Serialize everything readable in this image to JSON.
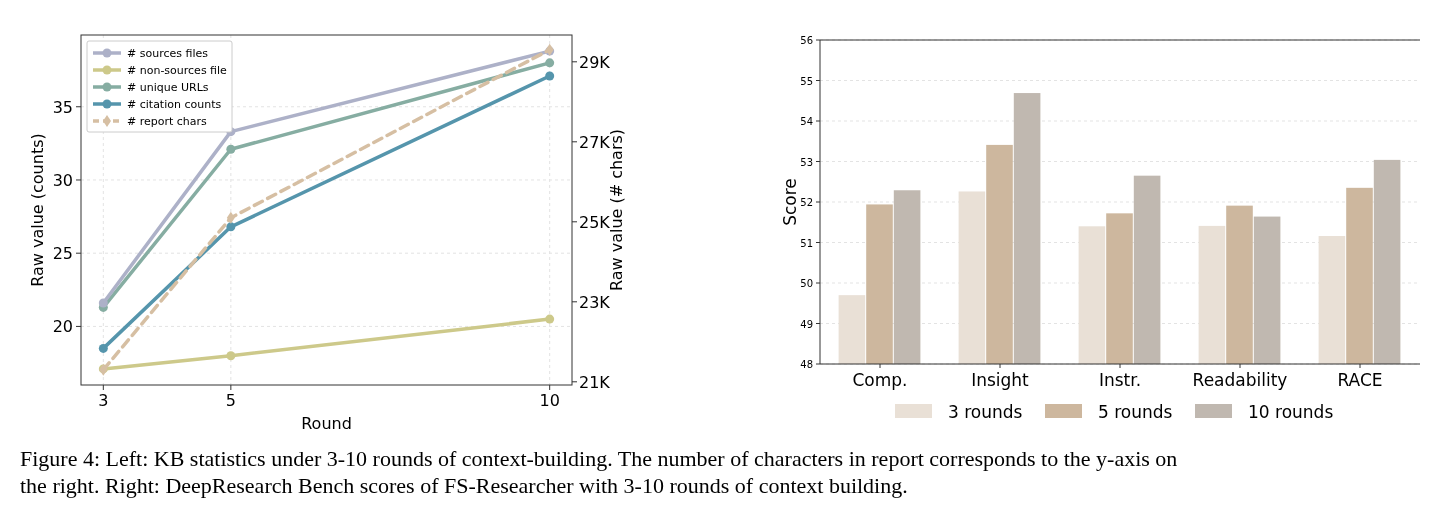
{
  "chart_data": [
    {
      "type": "line",
      "xlabel": "Round",
      "ylabel": "Raw value (counts)",
      "y2label": "Raw value (# chars)",
      "x": [
        3,
        5,
        10
      ],
      "xlim": [
        2.65,
        10.35
      ],
      "xticks": [
        3,
        5,
        10
      ],
      "ylim": [
        16,
        39.9
      ],
      "yticks": [
        20,
        25,
        30,
        35
      ],
      "y2lim": [
        20920,
        29670
      ],
      "y2ticks": [
        {
          "value": 21000,
          "label": "21K"
        },
        {
          "value": 23000,
          "label": "23K"
        },
        {
          "value": 25000,
          "label": "25K"
        },
        {
          "value": 27000,
          "label": "27K"
        },
        {
          "value": 29000,
          "label": "29K"
        }
      ],
      "grid": true,
      "legend": "top left",
      "series": [
        {
          "name": "# sources files",
          "color": "#adb1c8",
          "values": [
            21.6,
            33.3,
            38.8
          ],
          "marker": "circle",
          "line_style": "solid"
        },
        {
          "name": "# non-sources file",
          "color": "#cdc98a",
          "values": [
            17.1,
            18.0,
            20.5
          ],
          "marker": "circle",
          "line_style": "solid"
        },
        {
          "name": "# unique URLs",
          "color": "#86ada2",
          "values": [
            21.3,
            32.1,
            38.0
          ],
          "marker": "circle",
          "line_style": "solid"
        },
        {
          "name": "# citation counts",
          "color": "#5595ac",
          "values": [
            18.5,
            26.8,
            37.1
          ],
          "marker": "circle",
          "line_style": "solid"
        },
        {
          "name": "# report chars",
          "color": "#d6bfa3",
          "values": [
            21300,
            25100,
            29300
          ],
          "axis": "y2",
          "marker": "diamond",
          "line_style": "dashed"
        }
      ],
      "annotations": [
        "Figure 4: Left: KB statistics under 3-10 rounds of context-building. The number of characters in report corresponds to the y-axis on the right. Right: DeepResearch Bench scores of FS-Researcher with 3-10 rounds of context building."
      ]
    },
    {
      "type": "bar",
      "ylabel": "Score",
      "categories": [
        "Comp.",
        "Insight",
        "Instr.",
        "Readability",
        "RACE"
      ],
      "ylim": [
        48,
        56
      ],
      "yticks": [
        48,
        49,
        50,
        51,
        52,
        53,
        54,
        55,
        56
      ],
      "grid": "y",
      "legend": "bottom",
      "series": [
        {
          "name": "3 rounds",
          "color": "#e9e0d6",
          "values": [
            49.7,
            52.26,
            51.4,
            51.41,
            51.16
          ]
        },
        {
          "name": "5 rounds",
          "color": "#cdb79e",
          "values": [
            51.94,
            53.41,
            51.72,
            51.91,
            52.35
          ]
        },
        {
          "name": "10 rounds",
          "color": "#c0b8b0",
          "values": [
            52.29,
            54.69,
            52.65,
            51.64,
            53.04
          ]
        }
      ]
    }
  ]
}
